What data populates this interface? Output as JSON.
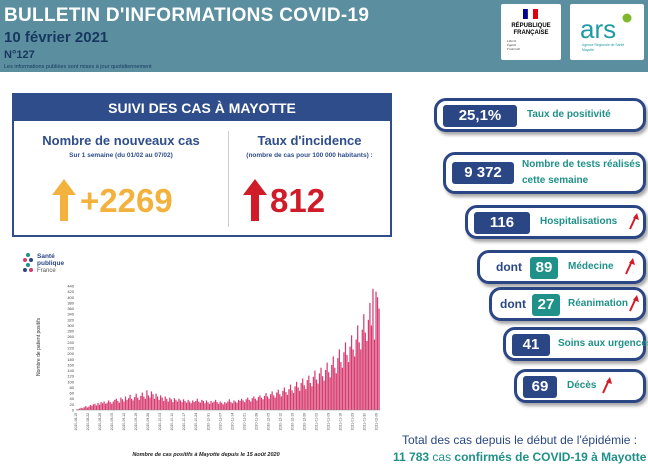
{
  "header": {
    "title": "BULLETIN D'INFORMATIONS COVID-19",
    "date": "10 février 2021",
    "number": "N°127",
    "note": "Les informations publiées sont mises à jour quotidiennement",
    "logo_rf": [
      "RÉPUBLIQUE",
      "FRANÇAISE"
    ],
    "logo_rf_motto": [
      "Liberté",
      "Égalité",
      "Fraternité"
    ],
    "logo_ars": "ars",
    "logo_ars_sub": [
      "Agence Régionale de Santé",
      "Mayotte"
    ]
  },
  "suivi": {
    "title": "SUIVI DES CAS À MAYOTTE",
    "new_cases": {
      "title": "Nombre de nouveaux cas",
      "subtitle": "Sur 1 semaine (du 01/02 au 07/02)",
      "value": "+2269",
      "trend": "up"
    },
    "incidence": {
      "title": "Taux d'incidence",
      "subtitle": "(nombre de cas pour 100 000 habitants) :",
      "value": "812",
      "trend": "up"
    }
  },
  "indicators": {
    "positivite": {
      "value": "25,1%",
      "label": "Taux de positivité"
    },
    "tests": {
      "value": "9 372",
      "label_line1": "Nombre de tests réalisés",
      "label_line2": "cette semaine"
    },
    "hospitalisations": {
      "value": "116",
      "label": "Hospitalisations",
      "trend": "up"
    },
    "medecine": {
      "prefix": "dont",
      "value": "89",
      "label": "Médecine",
      "trend": "up"
    },
    "reanimation": {
      "prefix": "dont",
      "value": "27",
      "label": "Réanimation",
      "trend": "up"
    },
    "soins_urgences": {
      "value": "41",
      "label": "Soins aux urgences"
    },
    "deces": {
      "value": "69",
      "label": "Décès",
      "trend": "up"
    }
  },
  "spf_logo": {
    "lines": [
      "Santé",
      "publique",
      "France"
    ]
  },
  "totals": {
    "line1": "Total des cas depuis le début de l'épidémie :",
    "count": "11 783",
    "word_cas": "cas",
    "rest": "confirmés de COVID-19 à Mayotte"
  },
  "chart_data": {
    "type": "bar",
    "title": "",
    "caption": "Nombre de cas positifs à Mayotte depuis le 15 août 2020",
    "ylabel": "Nombre de patient positifs",
    "xlabel": "",
    "ylim": [
      0,
      440
    ],
    "yticks": [
      0,
      20,
      40,
      60,
      80,
      100,
      120,
      140,
      160,
      180,
      200,
      220,
      240,
      260,
      280,
      300,
      320,
      340,
      360,
      380,
      400,
      420,
      440
    ],
    "x_start": "2020-08-15",
    "x_end": "2021-02-08",
    "xticks": [
      "2020-08-15",
      "2020-08-22",
      "2020-08-29",
      "2020-09-05",
      "2020-09-12",
      "2020-09-19",
      "2020-09-26",
      "2020-10-03",
      "2020-10-10",
      "2020-10-17",
      "2020-10-24",
      "2020-10-31",
      "2020-11-07",
      "2020-11-14",
      "2020-11-21",
      "2020-11-28",
      "2020-12-05",
      "2020-12-12",
      "2020-12-19",
      "2020-12-26",
      "2021-01-02",
      "2021-01-09",
      "2021-01-16",
      "2021-01-23",
      "2021-01-30",
      "2021-02-06"
    ],
    "color": "#d63a6e",
    "values": [
      2,
      3,
      5,
      8,
      6,
      10,
      14,
      9,
      12,
      18,
      15,
      20,
      22,
      16,
      25,
      19,
      28,
      24,
      30,
      22,
      26,
      34,
      28,
      22,
      30,
      36,
      40,
      32,
      26,
      44,
      38,
      30,
      48,
      36,
      42,
      54,
      40,
      34,
      46,
      58,
      44,
      36,
      50,
      62,
      48,
      40,
      70,
      52,
      44,
      66,
      56,
      40,
      58,
      48,
      36,
      52,
      44,
      32,
      48,
      40,
      30,
      44,
      38,
      28,
      42,
      36,
      30,
      40,
      34,
      28,
      38,
      32,
      26,
      36,
      30,
      24,
      34,
      28,
      32,
      40,
      30,
      26,
      36,
      32,
      24,
      34,
      28,
      22,
      32,
      26,
      30,
      36,
      28,
      22,
      30,
      26,
      20,
      28,
      24,
      30,
      38,
      28,
      24,
      34,
      30,
      26,
      36,
      32,
      40,
      34,
      28,
      38,
      44,
      36,
      30,
      42,
      48,
      40,
      34,
      46,
      52,
      44,
      38,
      50,
      60,
      48,
      40,
      56,
      66,
      52,
      44,
      62,
      72,
      56,
      48,
      68,
      80,
      64,
      54,
      74,
      90,
      70,
      60,
      84,
      100,
      80,
      68,
      96,
      112,
      88,
      74,
      106,
      122,
      96,
      84,
      118,
      140,
      108,
      94,
      130,
      150,
      120,
      104,
      142,
      168,
      134,
      116,
      160,
      190,
      150,
      130,
      184,
      215,
      170,
      150,
      205,
      240,
      195,
      170,
      225,
      265,
      215,
      190,
      250,
      300,
      240,
      215,
      285,
      340,
      275,
      245,
      320,
      380,
      300,
      430,
      250,
      420,
      400,
      360
    ]
  }
}
